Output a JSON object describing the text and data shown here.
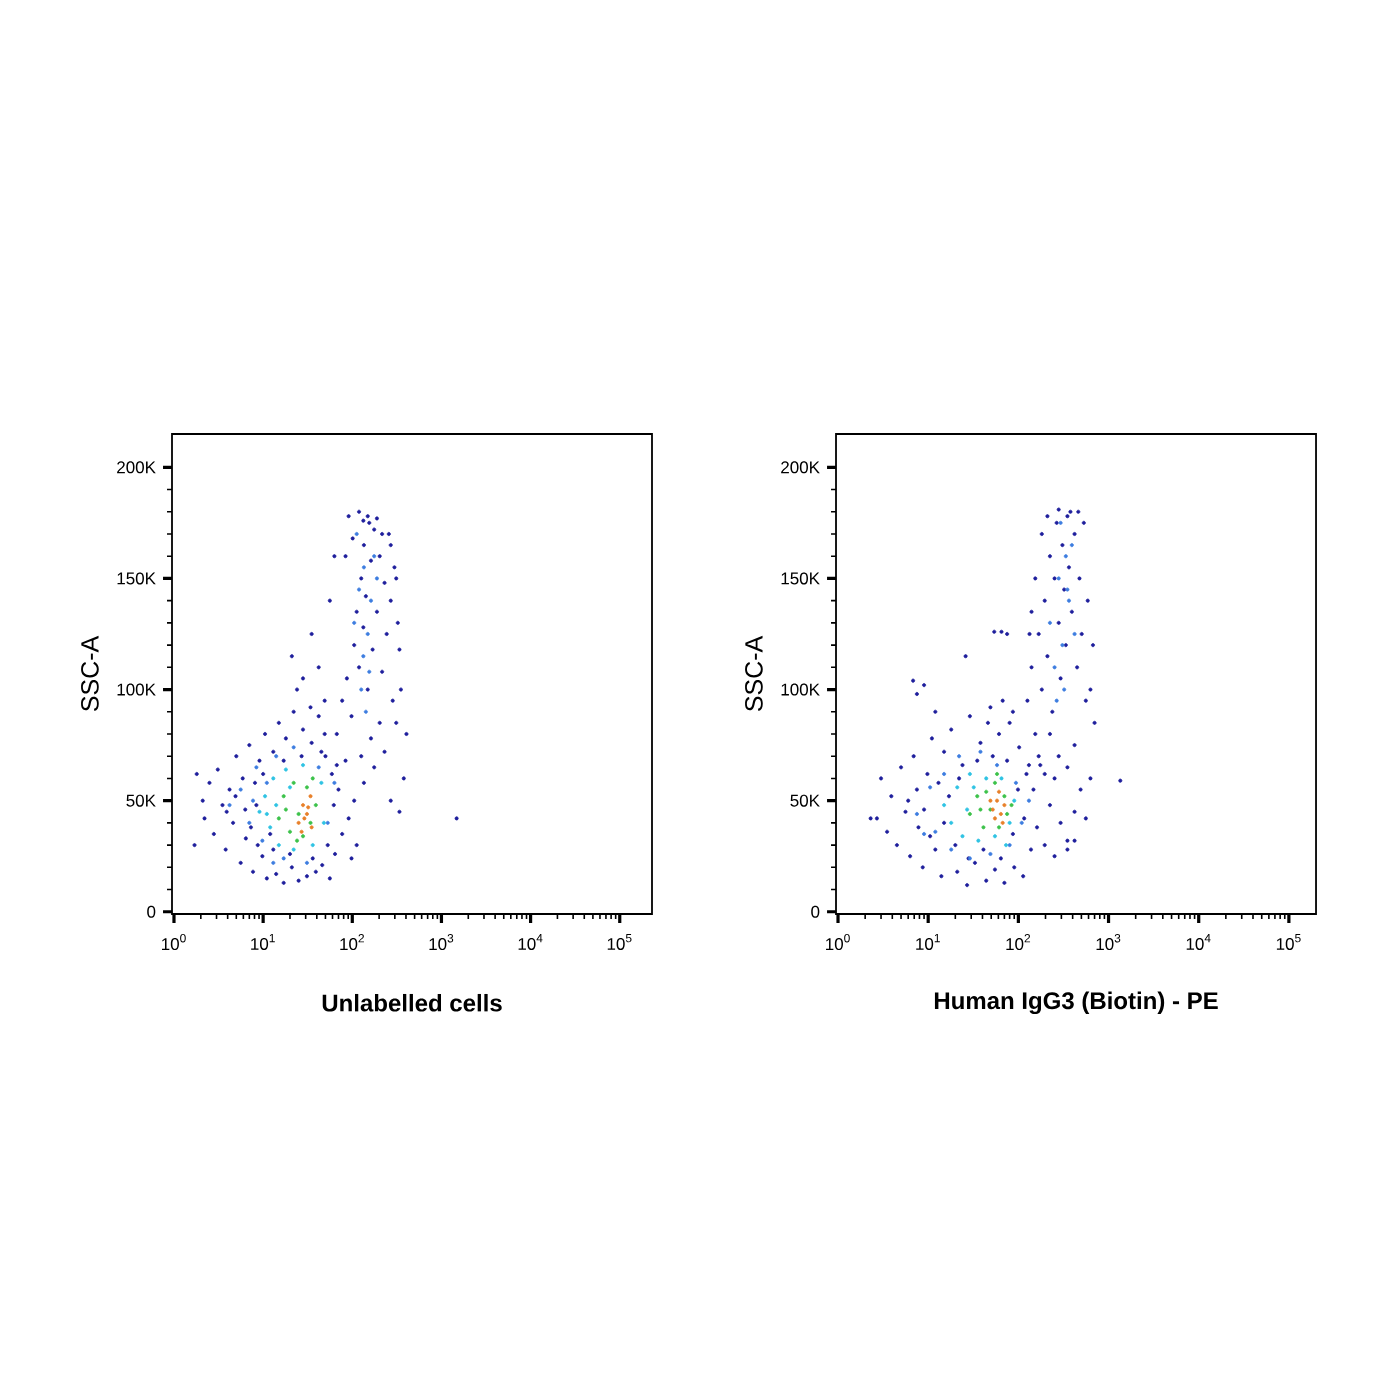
{
  "chart_data": [
    {
      "type": "scatter",
      "xlabel": "Unlabelled cells",
      "ylabel": "SSC-A",
      "log": "x",
      "marker": "circle",
      "xlim": [
        0.95,
        230000
      ],
      "ylim": [
        -1000,
        215000
      ],
      "xticks": [
        {
          "value": 1,
          "label": "10$^{0}$"
        },
        {
          "value": 10,
          "label": "10$^{1}$"
        },
        {
          "value": 100,
          "label": "10$^{2}$"
        },
        {
          "value": 1000,
          "label": "10$^{3}$"
        },
        {
          "value": 10000,
          "label": "10$^{4}$"
        },
        {
          "value": 100000,
          "label": "10$^{5}$"
        }
      ],
      "yticks": [
        0,
        {
          "value": 50000,
          "label": "50K"
        },
        {
          "value": 100000,
          "label": "100K"
        },
        {
          "value": 150000,
          "label": "150K"
        },
        {
          "value": 200000,
          "label": "200K"
        }
      ],
      "series": [
        {
          "color": "#1e1e9c",
          "x": [
            2.1,
            2.2,
            2.5,
            2.8,
            3.1,
            3.5,
            3.8,
            4.2,
            4.6,
            5.0,
            5.6,
            5.9,
            6.4,
            7.0,
            7.7,
            8.4,
            9.1,
            9.8,
            10.5,
            11,
            13,
            14,
            15,
            17,
            18,
            21,
            22,
            25,
            28,
            31,
            35,
            39,
            42,
            46,
            50,
            56,
            59,
            64,
            70,
            77,
            84,
            91,
            98,
            105,
            112,
            3.9,
            4.9,
            6.3,
            7.3,
            8.1,
            8.7,
            10,
            12,
            13,
            17,
            20,
            27,
            36,
            45,
            53,
            62,
            67,
            49,
            34,
            24,
            67,
            77,
            87,
            98,
            105,
            112,
            119,
            126,
            133,
            135,
            142,
            149,
            155,
            162,
            169,
            176,
            189,
            203,
            216,
            230,
            243,
            257,
            270,
            284,
            297,
            324,
            84,
            91,
            101,
            119,
            133,
            149,
            189,
            216,
            270,
            311,
            338,
            351,
            311,
            405,
            378,
            338,
            270,
            230,
            203,
            176,
            162,
            135,
            126,
            42,
            35,
            56,
            28,
            63,
            49,
            21,
            1480,
            1.7,
            1.8
          ],
          "values": [
            50000,
            42000,
            58000,
            35000,
            64000,
            48000,
            28000,
            55000,
            40000,
            70000,
            22000,
            60000,
            33000,
            75000,
            18000,
            48000,
            68000,
            25000,
            80000,
            15000,
            72000,
            17000,
            85000,
            13000,
            78000,
            20000,
            90000,
            14000,
            82000,
            16000,
            76000,
            18000,
            88000,
            21000,
            70000,
            15000,
            62000,
            26000,
            55000,
            35000,
            68000,
            42000,
            24000,
            50000,
            30000,
            45000,
            52000,
            46000,
            38000,
            58000,
            30000,
            62000,
            35000,
            28000,
            68000,
            26000,
            70000,
            24000,
            72000,
            30000,
            48000,
            66000,
            80000,
            92000,
            100000,
            80000,
            95000,
            105000,
            88000,
            120000,
            135000,
            110000,
            150000,
            128000,
            165000,
            142000,
            100000,
            175000,
            158000,
            118000,
            172000,
            135000,
            160000,
            108000,
            148000,
            125000,
            170000,
            140000,
            95000,
            155000,
            130000,
            160000,
            178000,
            168000,
            180000,
            176000,
            178000,
            177000,
            170000,
            165000,
            150000,
            118000,
            100000,
            85000,
            80000,
            60000,
            45000,
            50000,
            72000,
            85000,
            65000,
            78000,
            58000,
            70000,
            110000,
            125000,
            140000,
            105000,
            160000,
            95000,
            115000,
            42000,
            30000,
            62000
          ]
        },
        {
          "color": "#3d7de0",
          "x": [
            105,
            119,
            133,
            135,
            149,
            162,
            126,
            176,
            142,
            155,
            189,
            112,
            4.2,
            5.6,
            7.0,
            8.4,
            9.8,
            11,
            13,
            14,
            17,
            22,
            31,
            42,
            53,
            63,
            7.7
          ],
          "values": [
            130000,
            145000,
            115000,
            155000,
            125000,
            140000,
            100000,
            160000,
            90000,
            108000,
            150000,
            170000,
            48000,
            55000,
            40000,
            65000,
            32000,
            58000,
            22000,
            70000,
            24000,
            74000,
            22000,
            65000,
            40000,
            58000,
            50000
          ]
        },
        {
          "color": "#2fc3e3",
          "x": [
            9.1,
            10.5,
            12,
            13,
            15,
            18,
            22,
            28,
            36,
            45,
            48,
            14,
            20,
            11
          ],
          "values": [
            45000,
            52000,
            38000,
            60000,
            30000,
            64000,
            28000,
            66000,
            30000,
            58000,
            40000,
            48000,
            56000,
            44000
          ]
        },
        {
          "color": "#3cc24a",
          "x": [
            15,
            17,
            20,
            22,
            25,
            28,
            31,
            34,
            39,
            18,
            36,
            24
          ],
          "values": [
            42000,
            52000,
            36000,
            58000,
            44000,
            34000,
            56000,
            40000,
            48000,
            46000,
            60000,
            32000
          ]
        },
        {
          "color": "#e8802a",
          "x": [
            25,
            28,
            31,
            27,
            34,
            29,
            35,
            32
          ],
          "values": [
            40000,
            48000,
            44000,
            36000,
            52000,
            42000,
            38000,
            47000
          ]
        }
      ]
    },
    {
      "type": "scatter",
      "xlabel": "Human IgG3 (Biotin) - PE",
      "ylabel": "SSC-A",
      "log": "x",
      "marker": "circle",
      "xlim": [
        0.95,
        200000
      ],
      "ylim": [
        -1000,
        215000
      ],
      "xticks": [
        {
          "value": 1,
          "label": "10$^{0}$"
        },
        {
          "value": 10,
          "label": "10$^{1}$"
        },
        {
          "value": 100,
          "label": "10$^{2}$"
        },
        {
          "value": 1000,
          "label": "10$^{3}$"
        },
        {
          "value": 10000,
          "label": "10$^{4}$"
        },
        {
          "value": 100000,
          "label": "10$^{5}$"
        }
      ],
      "yticks": [
        0,
        {
          "value": 50000,
          "label": "50K"
        },
        {
          "value": 100000,
          "label": "100K"
        },
        {
          "value": 150000,
          "label": "150K"
        },
        {
          "value": 200000,
          "label": "200K"
        }
      ],
      "series": [
        {
          "color": "#1e1e9c",
          "x": [
            2.7,
            3.0,
            3.5,
            3.9,
            4.5,
            5.0,
            5.6,
            6.3,
            6.9,
            7.8,
            8.7,
            9.8,
            11,
            12,
            14,
            15,
            17,
            18,
            21,
            24,
            27,
            29,
            33,
            38,
            44,
            49,
            55,
            61,
            70,
            80,
            90,
            102,
            113,
            123,
            138,
            147,
            161,
            175,
            196,
            224,
            252,
            294,
            350,
            420,
            7.5,
            6.0,
            9.0,
            10.5,
            13,
            15,
            20,
            22,
            28,
            35,
            41,
            52,
            64,
            75,
            87,
            99,
            116,
            131,
            67,
            46,
            87,
            126,
            140,
            154,
            168,
            182,
            196,
            210,
            224,
            238,
            252,
            266,
            280,
            294,
            308,
            322,
            336,
            350,
            364,
            392,
            420,
            448,
            476,
            504,
            532,
            560,
            588,
            630,
            700,
            672,
            210,
            280,
            378,
            462,
            182,
            154,
            140,
            133,
            420,
            350,
            280,
            490,
            560,
            420,
            350,
            224,
            252,
            196,
            168,
            630,
            6.8,
            7.5,
            9.0,
            26,
            54,
            65,
            75,
            1350,
            12,
            2.3
          ],
          "values": [
            42000,
            60000,
            36000,
            52000,
            30000,
            65000,
            45000,
            25000,
            70000,
            38000,
            20000,
            62000,
            78000,
            28000,
            16000,
            72000,
            52000,
            82000,
            18000,
            66000,
            12000,
            88000,
            22000,
            76000,
            14000,
            92000,
            19000,
            80000,
            13000,
            85000,
            20000,
            74000,
            16000,
            62000,
            28000,
            55000,
            38000,
            66000,
            30000,
            48000,
            25000,
            40000,
            32000,
            45000,
            55000,
            50000,
            46000,
            34000,
            58000,
            40000,
            30000,
            60000,
            24000,
            68000,
            28000,
            70000,
            24000,
            68000,
            35000,
            55000,
            42000,
            66000,
            95000,
            85000,
            90000,
            95000,
            110000,
            80000,
            125000,
            100000,
            140000,
            115000,
            160000,
            90000,
            150000,
            175000,
            130000,
            105000,
            165000,
            145000,
            120000,
            178000,
            155000,
            135000,
            170000,
            110000,
            150000,
            125000,
            175000,
            95000,
            140000,
            100000,
            85000,
            120000,
            178000,
            181000,
            180000,
            180000,
            170000,
            150000,
            135000,
            125000,
            75000,
            65000,
            70000,
            55000,
            42000,
            32000,
            28000,
            80000,
            60000,
            62000,
            70000,
            60000,
            104000,
            98000,
            102000,
            115000,
            126000,
            126000,
            125000,
            59000,
            90000,
            42000
          ]
        },
        {
          "color": "#3d7de0",
          "x": [
            224,
            252,
            280,
            308,
            336,
            364,
            266,
            392,
            294,
            420,
            322,
            350,
            7.5,
            10.5,
            12,
            15,
            18,
            22,
            29,
            38,
            49,
            58,
            80,
            94,
            109,
            131,
            9.0
          ],
          "values": [
            130000,
            110000,
            150000,
            120000,
            160000,
            140000,
            95000,
            165000,
            175000,
            125000,
            100000,
            145000,
            44000,
            56000,
            36000,
            62000,
            28000,
            70000,
            24000,
            72000,
            26000,
            66000,
            30000,
            58000,
            40000,
            50000,
            35000
          ]
        },
        {
          "color": "#2fc3e3",
          "x": [
            15,
            18,
            21,
            24,
            29,
            36,
            44,
            55,
            65,
            80,
            90,
            27,
            32,
            73
          ],
          "values": [
            48000,
            40000,
            56000,
            34000,
            62000,
            32000,
            60000,
            34000,
            60000,
            40000,
            50000,
            46000,
            56000,
            30000
          ]
        },
        {
          "color": "#3cc24a",
          "x": [
            29,
            35,
            41,
            44,
            49,
            55,
            61,
            70,
            75,
            38,
            58,
            84
          ],
          "values": [
            44000,
            52000,
            38000,
            54000,
            46000,
            58000,
            38000,
            52000,
            44000,
            46000,
            62000,
            48000
          ]
        },
        {
          "color": "#e8802a",
          "x": [
            52,
            58,
            64,
            61,
            70,
            55,
            67,
            49
          ],
          "values": [
            46000,
            50000,
            44000,
            54000,
            48000,
            42000,
            40000,
            50000
          ]
        }
      ]
    }
  ]
}
